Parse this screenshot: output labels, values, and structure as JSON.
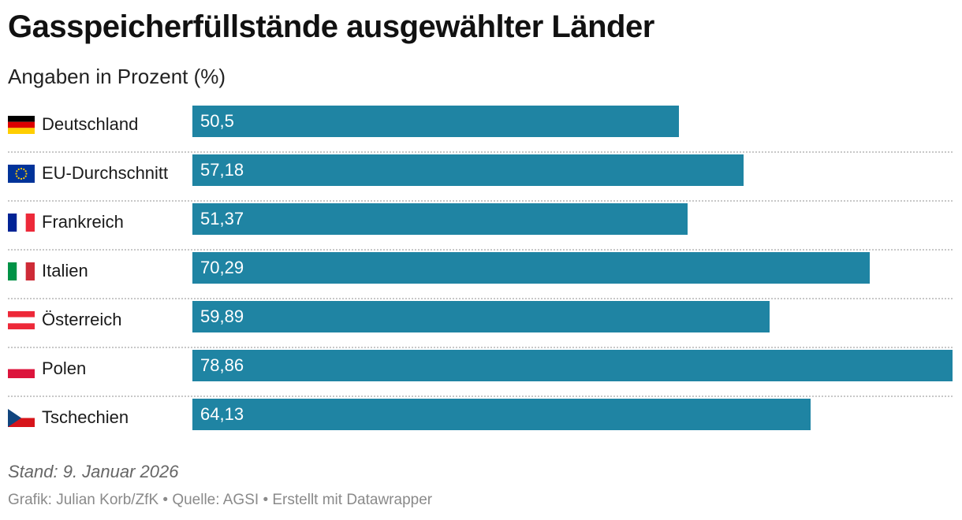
{
  "chart_data": {
    "type": "bar",
    "orientation": "horizontal",
    "title": "Gasspeicherfüllstände ausgewählter Länder",
    "subtitle": "Angaben in Prozent (%)",
    "categories": [
      "Deutschland",
      "EU-Durchschnitt",
      "Frankreich",
      "Italien",
      "Österreich",
      "Polen",
      "Tschechien"
    ],
    "values": [
      50.5,
      57.18,
      51.37,
      70.29,
      59.89,
      78.86,
      64.13
    ],
    "value_labels": [
      "50,5",
      "57,18",
      "51,37",
      "70,29",
      "59,89",
      "78,86",
      "64,13"
    ],
    "flag_icons": [
      "germany-flag-icon",
      "eu-flag-icon",
      "france-flag-icon",
      "italy-flag-icon",
      "austria-flag-icon",
      "poland-flag-icon",
      "czechia-flag-icon"
    ],
    "xlim": [
      0,
      78.86
    ],
    "bar_color": "#1f84a3",
    "xlabel": "",
    "ylabel": ""
  },
  "footer": {
    "date": "Stand: 9. Januar 2026",
    "credit": "Grafik: Julian Korb/ZfK • Quelle: AGSI • Erstellt mit Datawrapper"
  }
}
